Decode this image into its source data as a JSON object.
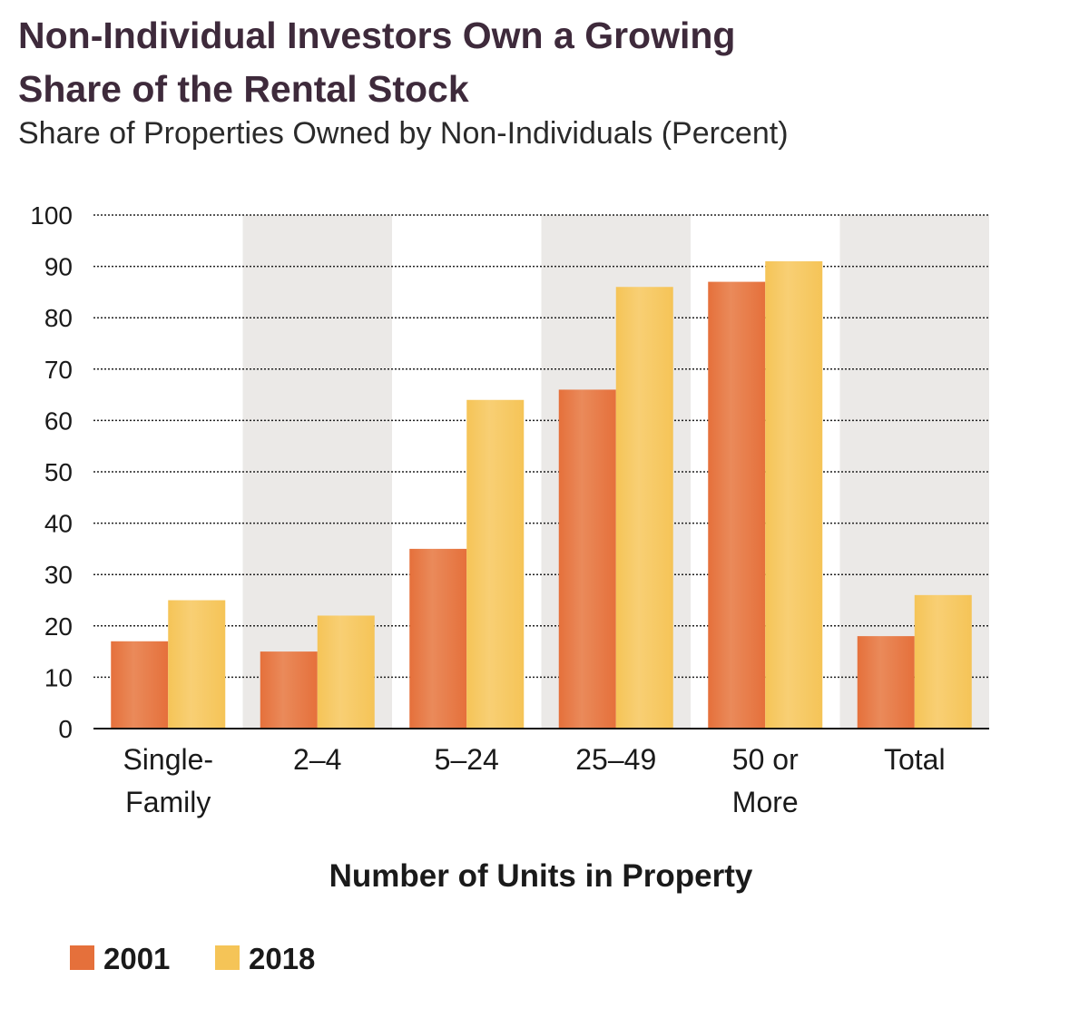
{
  "chart_data": {
    "type": "bar",
    "title_lines": [
      "Non-Individual Investors Own a Growing",
      "Share of the Rental Stock"
    ],
    "subtitle": "Share of Properties Owned by Non-Individuals (Percent)",
    "categories": [
      [
        "Single-",
        "Family"
      ],
      [
        "2–4"
      ],
      [
        "5–24"
      ],
      [
        "25–49"
      ],
      [
        "50 or",
        "More"
      ],
      [
        "Total"
      ]
    ],
    "series": [
      {
        "name": "2001",
        "color": "#e5703b",
        "values": [
          17,
          15,
          35,
          66,
          87,
          18
        ]
      },
      {
        "name": "2018",
        "color": "#f5c457",
        "values": [
          25,
          22,
          64,
          86,
          91,
          26
        ]
      }
    ],
    "xlabel": "Number of Units in Property",
    "ylabel": "",
    "ylim": [
      0,
      100
    ],
    "yticks": [
      0,
      10,
      20,
      30,
      40,
      50,
      60,
      70,
      80,
      90,
      100
    ],
    "grid": true,
    "legend": "bottom-left",
    "band_color": "#ebe9e7"
  }
}
